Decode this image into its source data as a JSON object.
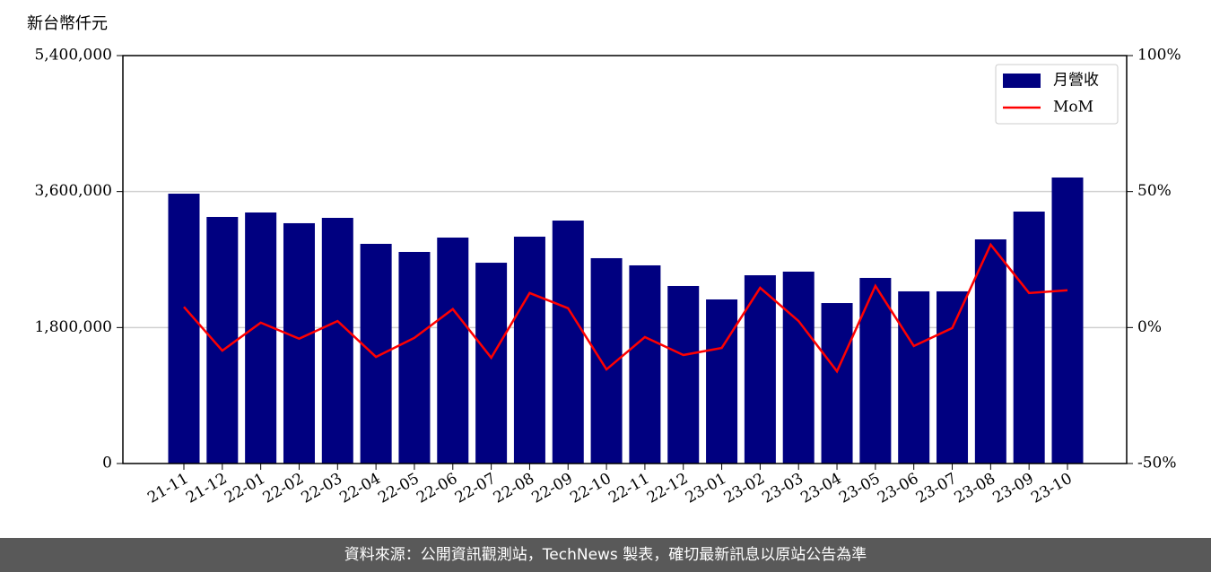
{
  "chart_data": {
    "type": "bar",
    "ylabel": "新台幣仟元",
    "categories": [
      "21-11",
      "21-12",
      "22-01",
      "22-02",
      "22-03",
      "22-04",
      "22-05",
      "22-06",
      "22-07",
      "22-08",
      "22-09",
      "22-10",
      "22-11",
      "22-12",
      "23-01",
      "23-02",
      "23-03",
      "23-04",
      "23-05",
      "23-06",
      "23-07",
      "23-08",
      "23-09",
      "23-10"
    ],
    "series": [
      {
        "name": "月營收",
        "type": "bar",
        "color": "#000080",
        "values": [
          3572000,
          3264000,
          3323000,
          3181000,
          3252000,
          2908000,
          2801000,
          2991000,
          2658000,
          3003000,
          3216000,
          2718000,
          2623000,
          2350000,
          2172000,
          2492000,
          2540000,
          2124000,
          2457000,
          2279000,
          2279000,
          2967000,
          3335000,
          3786000
        ]
      },
      {
        "name": "MoM",
        "type": "line",
        "color": "#ff0000",
        "axis": "y2",
        "values": [
          7.6,
          -8.5,
          1.8,
          -4.1,
          2.4,
          -10.8,
          -3.8,
          6.8,
          -11.1,
          12.7,
          7.1,
          -15.4,
          -3.5,
          -10.1,
          -7.5,
          14.6,
          2.4,
          -16.1,
          15.3,
          -6.8,
          -0.2,
          30.5,
          12.7,
          13.7
        ]
      }
    ],
    "ylim": [
      0,
      5400000
    ],
    "yticks": [
      0,
      {
        "value": 1800000,
        "label": "1,800,000"
      },
      {
        "value": 3600000,
        "label": "3,600,000"
      },
      {
        "value": 5400000,
        "label": "5,400,000"
      }
    ],
    "y2lim": [
      -50,
      100
    ],
    "y2ticks": [
      {
        "value": -50,
        "label": "-50%"
      },
      {
        "value": 0,
        "label": "0%"
      },
      {
        "value": 50,
        "label": "50%"
      },
      {
        "value": 100,
        "label": "100%"
      }
    ],
    "grid": true,
    "legend": "upper right"
  },
  "footer": "資料來源：公開資訊觀測站，TechNews 製表，確切最新訊息以原站公告為準"
}
